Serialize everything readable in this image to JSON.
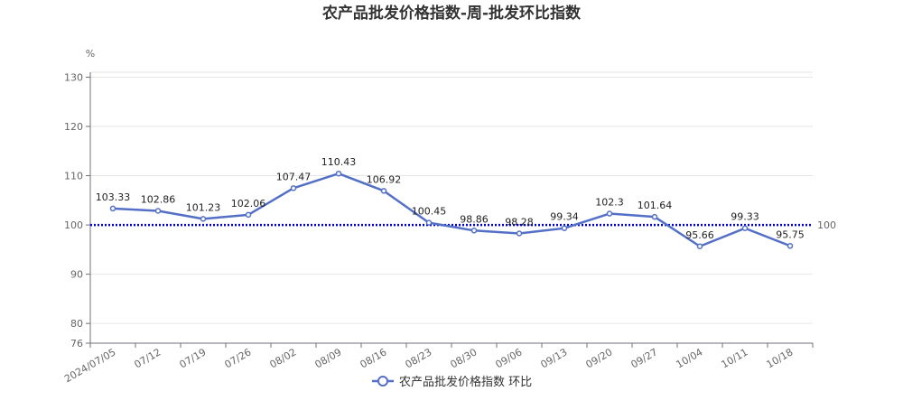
{
  "chart_data": {
    "type": "line",
    "title": "农产品批发价格指数-周-批发环比指数",
    "ylabel": "%",
    "xlabel": "",
    "categories": [
      "2024/07/05",
      "07/12",
      "07/19",
      "07/26",
      "08/02",
      "08/09",
      "08/16",
      "08/23",
      "08/30",
      "09/06",
      "09/13",
      "09/20",
      "09/27",
      "10/04",
      "10/11",
      "10/18"
    ],
    "series": [
      {
        "name": "农产品批发价格指数 环比",
        "color": "#5470c6",
        "values": [
          103.33,
          102.86,
          101.23,
          102.06,
          107.47,
          110.43,
          106.92,
          100.45,
          98.86,
          98.28,
          99.34,
          102.3,
          101.64,
          95.66,
          99.33,
          95.75
        ]
      }
    ],
    "ylim": [
      76,
      131
    ],
    "yticks": [
      76,
      80,
      90,
      100,
      110,
      120,
      130
    ],
    "reference_line": {
      "value": 100,
      "label": "100",
      "color": "#0000cc",
      "style": "dotted"
    },
    "grid": true,
    "legend_position": "bottom"
  }
}
